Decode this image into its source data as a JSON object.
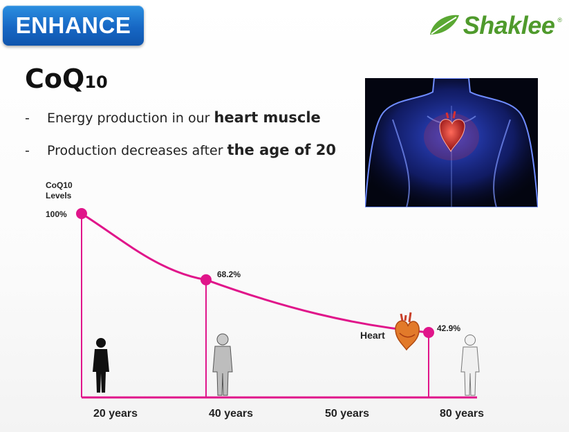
{
  "header": {
    "badge_label": "ENHANCE",
    "brand": "Shaklee",
    "brand_mark": "®",
    "badge_color": "#1a6fcc",
    "brand_color": "#4f9a2c"
  },
  "content": {
    "title_main": "CoQ",
    "title_sub": "10",
    "bullets": [
      {
        "dash": "-",
        "text": "Energy production in our",
        "strong": "heart muscle"
      },
      {
        "dash": "-",
        "text": "Production decreases after",
        "strong": "the age of 20"
      }
    ]
  },
  "chart_data": {
    "type": "line",
    "ylabel": "CoQ10\nLevels",
    "categories": [
      "20 years",
      "40 years",
      "50 years",
      "80 years"
    ],
    "points": [
      {
        "x": "20 years",
        "y": 100,
        "label": "100%"
      },
      {
        "x": "40 years",
        "y": 68.2,
        "label": "68.2%"
      },
      {
        "x": "80 years",
        "y": 42.9,
        "label": "42.9%"
      }
    ],
    "annotation": "Heart",
    "line_color": "#e0158a",
    "grid": false
  }
}
